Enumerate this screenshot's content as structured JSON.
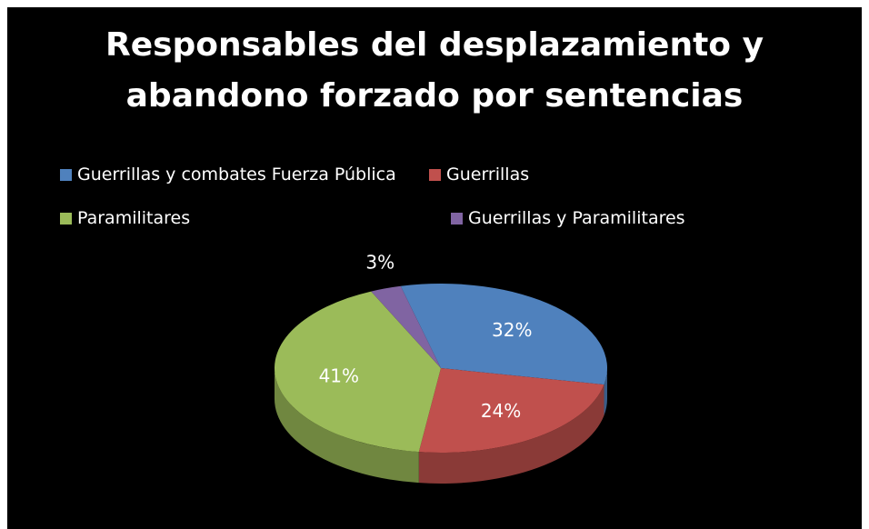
{
  "chart_data": {
    "type": "pie",
    "title": "Responsables del desplazamiento y abandono forzado por sentencias",
    "title_lines": [
      "Responsables del desplazamiento y",
      "abandono forzado por sentencias"
    ],
    "categories": [
      "Guerrillas y combates Fuerza Pública",
      "Guerrillas",
      "Paramilitares",
      "Guerrillas y Paramilitares"
    ],
    "values": [
      32,
      24,
      41,
      3
    ],
    "labels": [
      "32%",
      "24%",
      "41%",
      "3%"
    ],
    "colors": [
      "#4f81bd",
      "#c0504d",
      "#9bbb59",
      "#8064a2"
    ],
    "legend_position": "top",
    "background": "#000000"
  }
}
